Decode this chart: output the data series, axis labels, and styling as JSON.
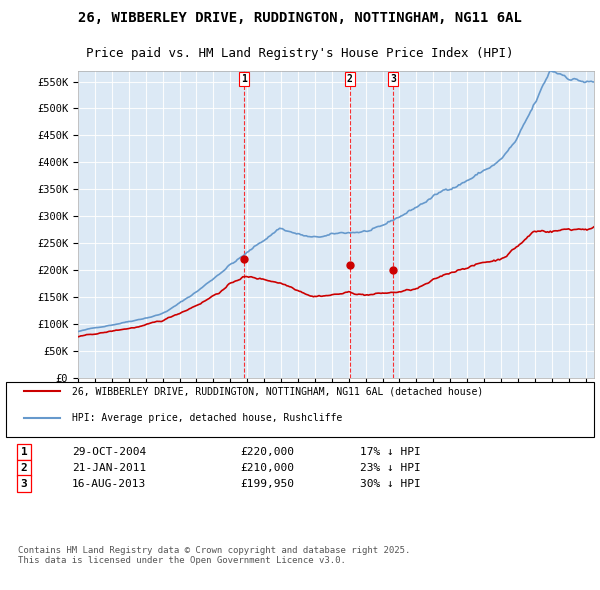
{
  "title": "26, WIBBERLEY DRIVE, RUDDINGTON, NOTTINGHAM, NG11 6AL",
  "subtitle": "Price paid vs. HM Land Registry's House Price Index (HPI)",
  "plot_bg_color": "#dce9f5",
  "ylim": [
    0,
    570000
  ],
  "yticks": [
    0,
    50000,
    100000,
    150000,
    200000,
    250000,
    300000,
    350000,
    400000,
    450000,
    500000,
    550000
  ],
  "xlim_start": 1995.0,
  "xlim_end": 2025.5,
  "transactions": [
    {
      "date_num": 2004.83,
      "price": 220000,
      "label": "1"
    },
    {
      "date_num": 2011.06,
      "price": 210000,
      "label": "2"
    },
    {
      "date_num": 2013.62,
      "price": 199950,
      "label": "3"
    }
  ],
  "transaction_table": [
    {
      "num": "1",
      "date": "29-OCT-2004",
      "price": "£220,000",
      "desc": "17% ↓ HPI"
    },
    {
      "num": "2",
      "date": "21-JAN-2011",
      "price": "£210,000",
      "desc": "23% ↓ HPI"
    },
    {
      "num": "3",
      "date": "16-AUG-2013",
      "price": "£199,950",
      "desc": "30% ↓ HPI"
    }
  ],
  "legend_line1": "26, WIBBERLEY DRIVE, RUDDINGTON, NOTTINGHAM, NG11 6AL (detached house)",
  "legend_line2": "HPI: Average price, detached house, Rushcliffe",
  "footer": "Contains HM Land Registry data © Crown copyright and database right 2025.\nThis data is licensed under the Open Government Licence v3.0.",
  "line_color_red": "#cc0000",
  "line_color_blue": "#6699cc"
}
